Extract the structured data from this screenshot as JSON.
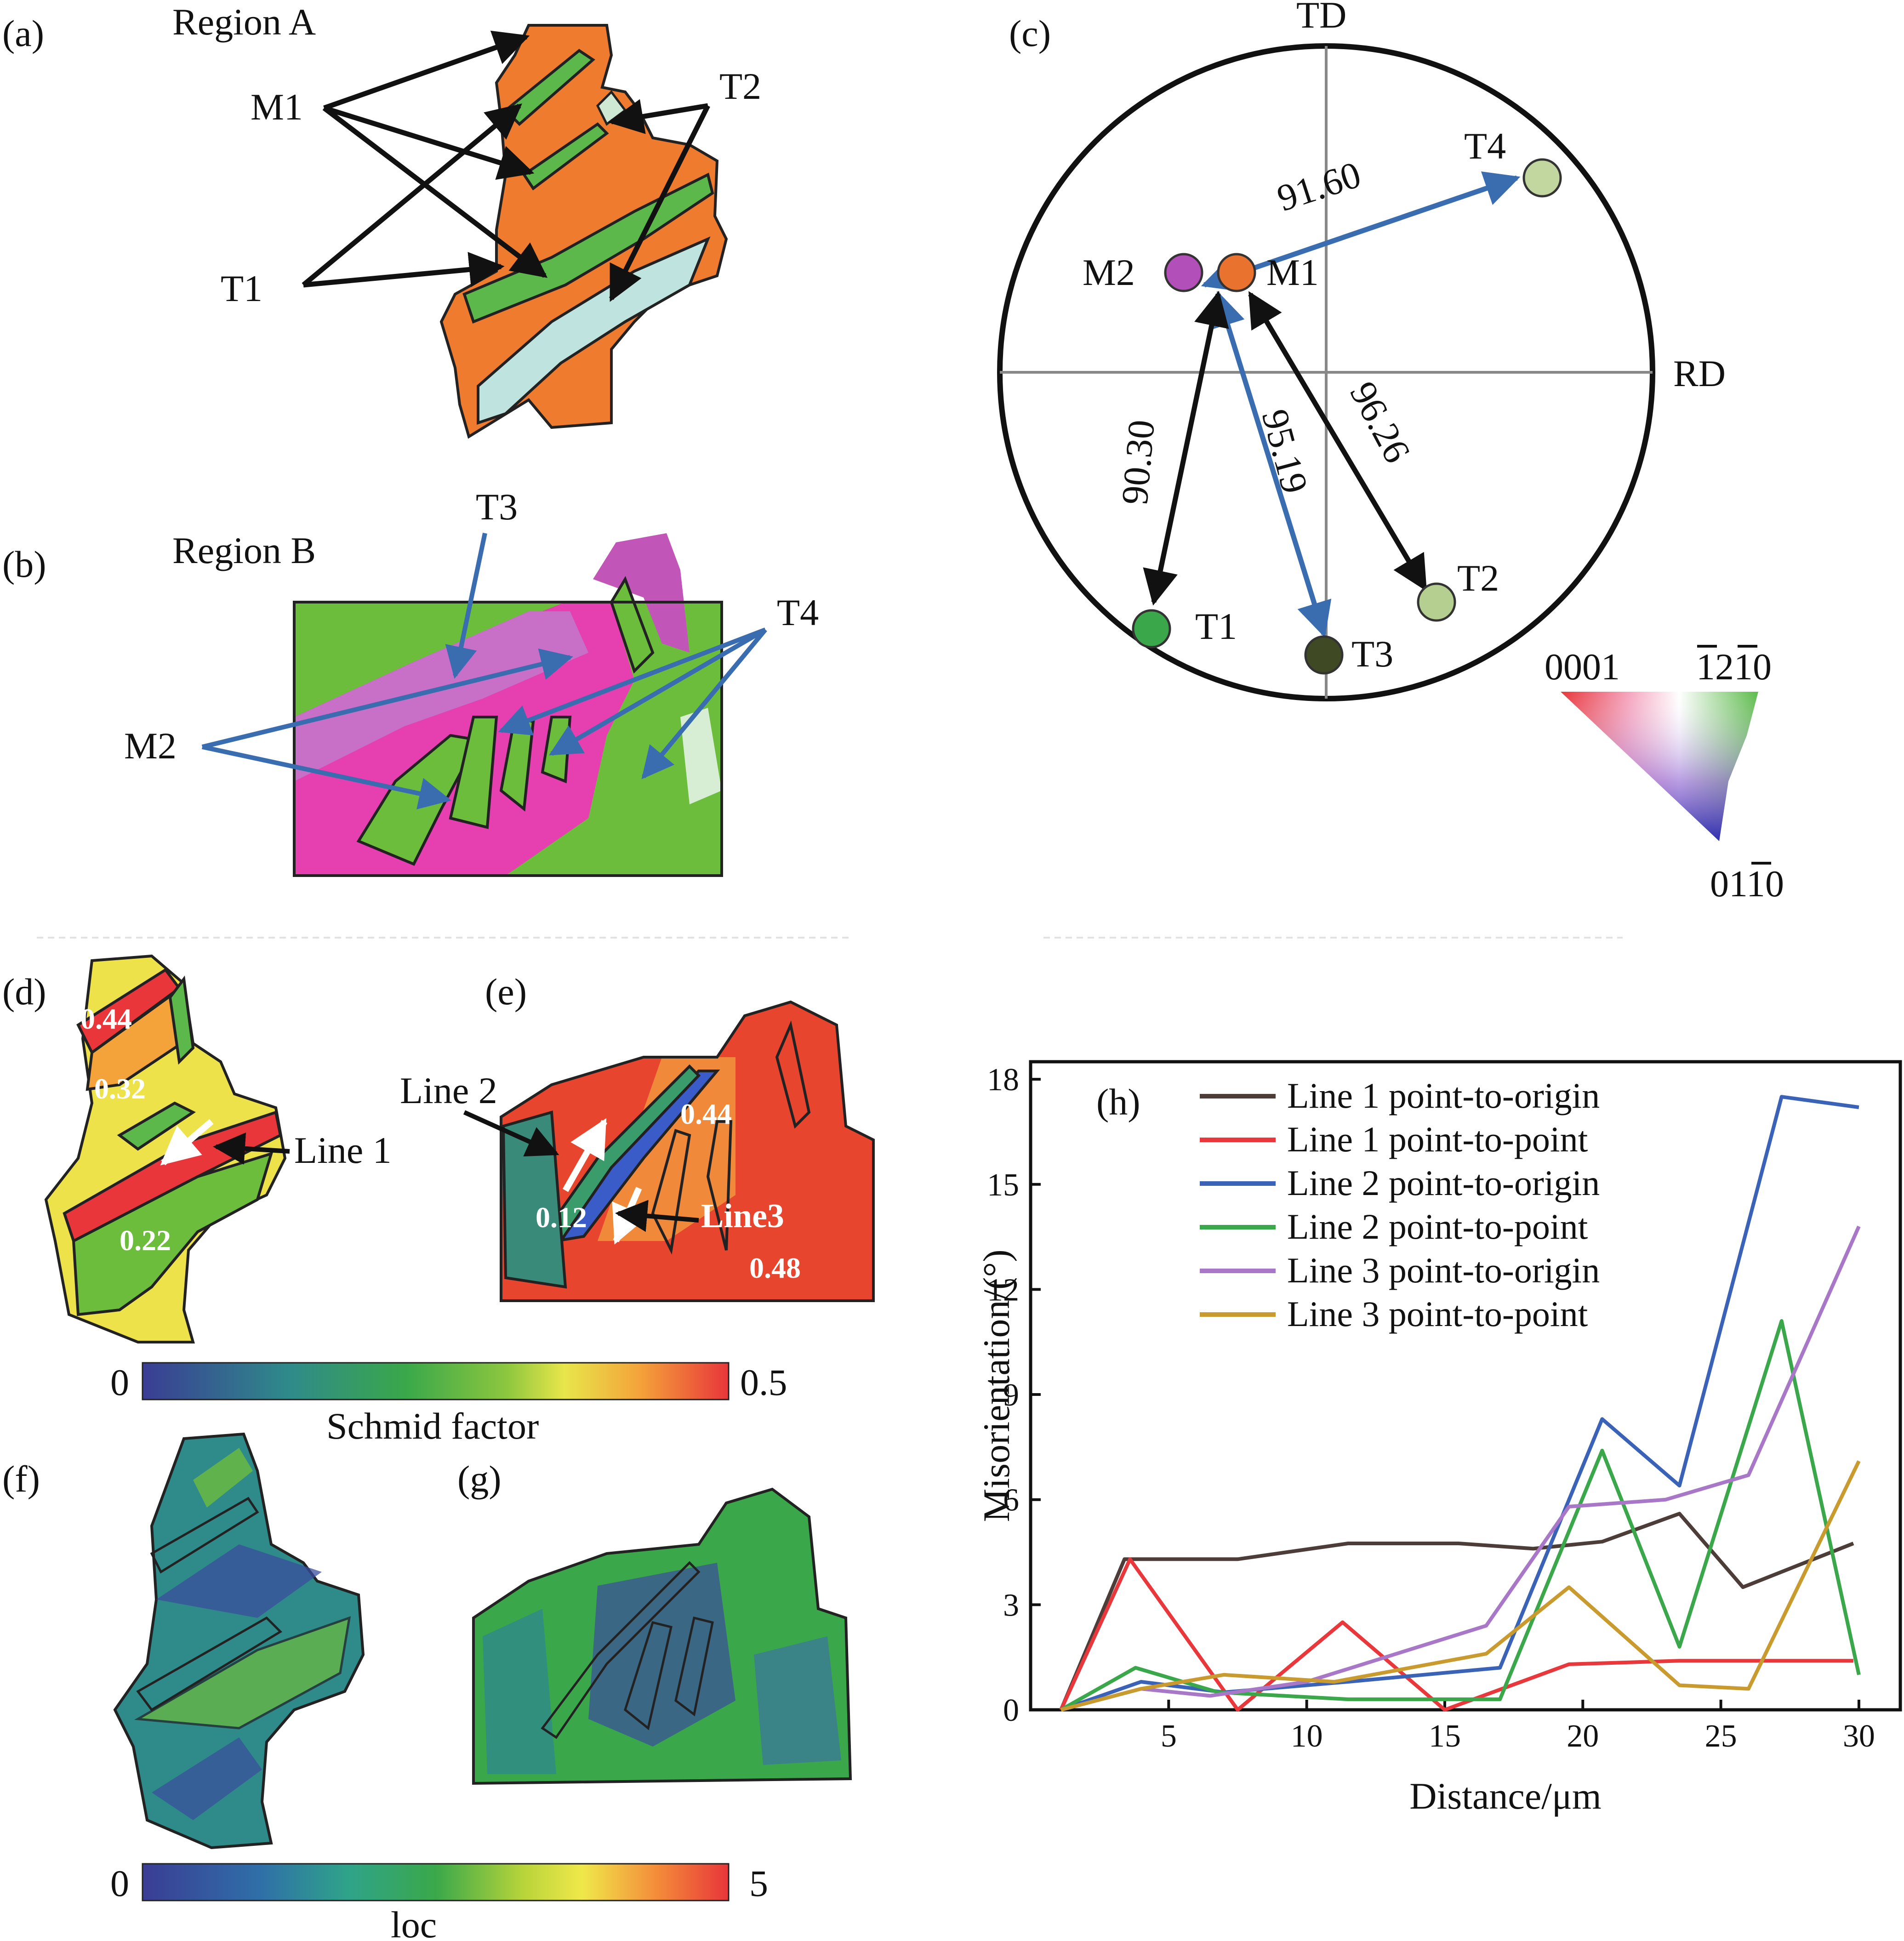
{
  "panels": {
    "a": {
      "letter": "(a)",
      "title": "Region A",
      "labels": {
        "m1": "M1",
        "t1": "T1",
        "t2": "T2"
      }
    },
    "b": {
      "letter": "(b)",
      "title": "Region B",
      "labels": {
        "t3": "T3",
        "t4": "T4",
        "m2": "M2"
      }
    },
    "c": {
      "letter": "(c)",
      "axes": {
        "td": "TD",
        "rd": "RD"
      },
      "poles": {
        "t4": "T4",
        "m2": "M2",
        "m1": "M1",
        "t1": "T1",
        "t2": "T2",
        "t3": "T3"
      },
      "pole_colors": {
        "t4": "#c2d6a0",
        "m2": "#b24fb8",
        "m1": "#e8722e",
        "t1": "#3aa84a",
        "t2": "#b5cf90",
        "t3": "#3f4a25"
      },
      "angles": {
        "m2_t4": "91.60",
        "m1_t1": "90.30",
        "m2_t3": "95.19",
        "m1_t2": "96.26"
      },
      "ipf_key": {
        "a": "0001",
        "b": "1210",
        "c": "0110"
      }
    },
    "d": {
      "letter": "(d)",
      "line_label": "Line 1",
      "values": {
        "v1": "0.44",
        "v2": "0.32",
        "v3": "0.22"
      }
    },
    "e": {
      "letter": "(e)",
      "line2_label": "Line 2",
      "line3_label": "Line3",
      "values": {
        "v1": "0.44",
        "v2": "0.12",
        "v3": "0.48"
      }
    },
    "schmid_bar": {
      "min": "0",
      "max": "0.5",
      "label": "Schmid factor"
    },
    "f": {
      "letter": "(f)"
    },
    "g": {
      "letter": "(g)"
    },
    "loc_bar": {
      "min": "0",
      "max": "5",
      "label": "loc"
    }
  },
  "chart_data": {
    "type": "line",
    "panel_letter": "(h)",
    "xlabel": "Distance/μm",
    "ylabel": "Misorientation/(°)",
    "xlim": [
      0,
      31.5
    ],
    "ylim": [
      0,
      18.5
    ],
    "xticks": [
      5,
      10,
      15,
      20,
      25,
      30
    ],
    "yticks": [
      0,
      3,
      6,
      9,
      12,
      15,
      18
    ],
    "series": [
      {
        "name": "Line 1 point-to-origin",
        "color": "#4d3d39",
        "x": [
          1.1,
          3.4,
          7.5,
          11.5,
          15.5,
          18.2,
          20.7,
          23.5,
          25.8,
          29.8
        ],
        "y": [
          0.0,
          4.3,
          4.3,
          4.75,
          4.75,
          4.6,
          4.8,
          5.6,
          3.5,
          4.75
        ]
      },
      {
        "name": "Line 1 point-to-point",
        "color": "#e8383b",
        "x": [
          1.1,
          3.6,
          7.5,
          11.3,
          15.0,
          19.5,
          23.5,
          29.8
        ],
        "y": [
          0.0,
          4.3,
          0.0,
          2.5,
          0.0,
          1.3,
          1.4,
          1.4
        ]
      },
      {
        "name": "Line 2 point-to-origin",
        "color": "#3a63b8",
        "x": [
          1.1,
          4.0,
          7.0,
          11.5,
          17.0,
          20.7,
          23.5,
          27.2,
          30.0
        ],
        "y": [
          0.0,
          0.8,
          0.5,
          0.8,
          1.2,
          8.3,
          6.4,
          17.5,
          17.2
        ]
      },
      {
        "name": "Line 2 point-to-point",
        "color": "#3aa84a",
        "x": [
          1.1,
          3.8,
          6.8,
          11.5,
          17.0,
          20.7,
          23.5,
          27.2,
          30.0
        ],
        "y": [
          0.0,
          1.2,
          0.5,
          0.3,
          0.3,
          7.4,
          1.8,
          11.1,
          1.0
        ]
      },
      {
        "name": "Line 3 point-to-origin",
        "color": "#a877c8",
        "x": [
          1.1,
          4.0,
          6.5,
          10.0,
          16.5,
          19.5,
          23.0,
          26.0,
          30.0
        ],
        "y": [
          0.0,
          0.6,
          0.4,
          0.8,
          2.4,
          5.8,
          6.0,
          6.7,
          13.8
        ]
      },
      {
        "name": "Line 3 point-to-point",
        "color": "#c99a2e",
        "x": [
          1.1,
          4.0,
          7.0,
          11.0,
          16.5,
          19.5,
          23.5,
          26.0,
          30.0
        ],
        "y": [
          0.0,
          0.6,
          1.0,
          0.8,
          1.6,
          3.5,
          0.7,
          0.6,
          7.1
        ]
      }
    ]
  }
}
